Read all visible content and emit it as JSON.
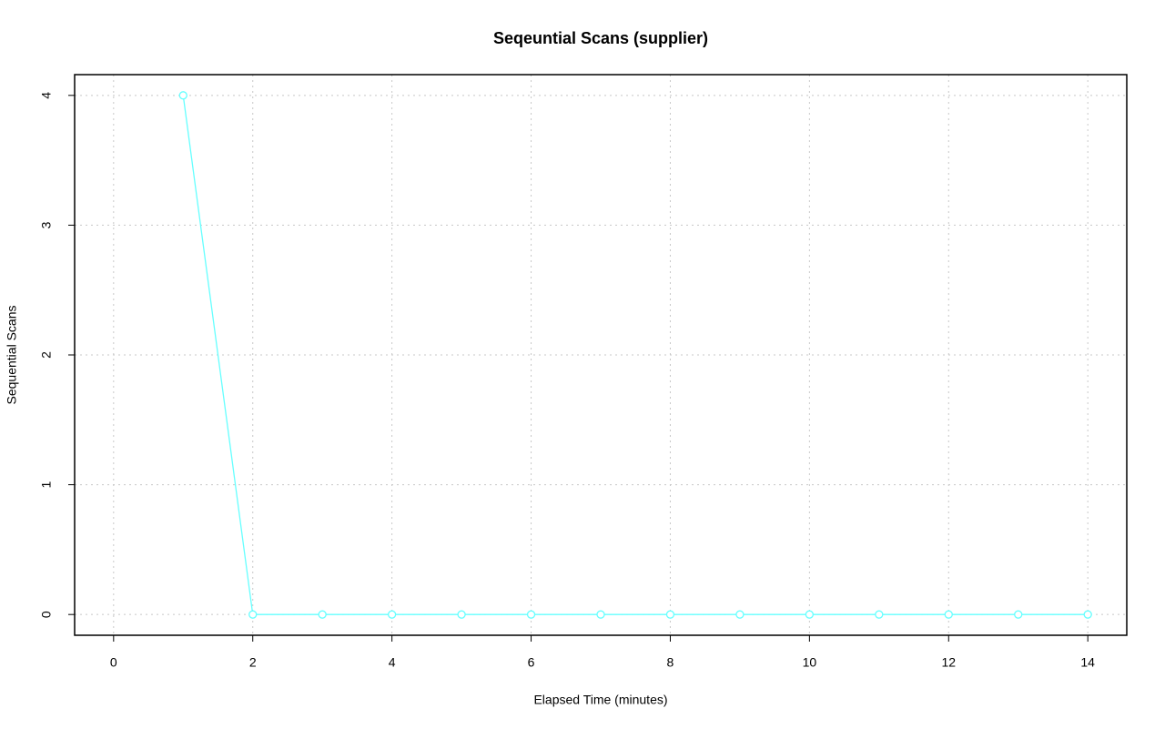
{
  "chart_data": {
    "type": "line",
    "title": "Seqeuntial Scans (supplier)",
    "x_label": "Elapsed Time (minutes)",
    "y_label": "Sequential Scans",
    "x": [
      1,
      2,
      3,
      4,
      5,
      6,
      7,
      8,
      9,
      10,
      11,
      12,
      13,
      14
    ],
    "series": [
      {
        "name": "supplier",
        "color": "#66ffff",
        "values": [
          4,
          0,
          0,
          0,
          0,
          0,
          0,
          0,
          0,
          0,
          0,
          0,
          0,
          0
        ]
      }
    ],
    "xlim": [
      -0.56,
      14.56
    ],
    "xticks": [
      0,
      2,
      4,
      6,
      8,
      10,
      12,
      14
    ],
    "ylim": [
      -0.16,
      4.16
    ],
    "yticks": [
      0,
      1,
      2,
      3,
      4
    ],
    "grid": true,
    "markers": true
  }
}
